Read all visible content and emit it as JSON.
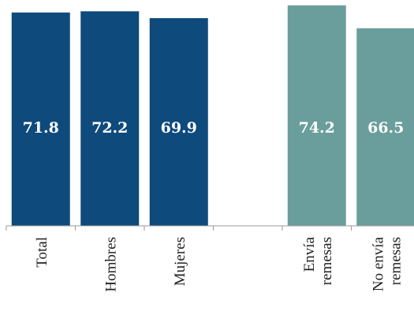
{
  "chart_data": {
    "type": "bar",
    "categories": [
      [
        "Total"
      ],
      [
        "Hombres"
      ],
      [
        "Mujeres"
      ],
      [],
      [
        "Envía",
        "remesas"
      ],
      [
        "No envía",
        "remesas"
      ]
    ],
    "values": [
      71.8,
      72.2,
      69.9,
      null,
      74.2,
      66.5
    ],
    "value_labels": [
      "71.8",
      "72.2",
      "69.9",
      "",
      "74.2",
      "66.5"
    ],
    "bar_colors": [
      "#0e4a7b",
      "#0e4a7b",
      "#0e4a7b",
      null,
      "#6a9e9c",
      "#6a9e9c"
    ],
    "title": "",
    "xlabel": "",
    "ylabel": "",
    "ylim": [
      0,
      76
    ],
    "grid": false,
    "legend": "none"
  }
}
